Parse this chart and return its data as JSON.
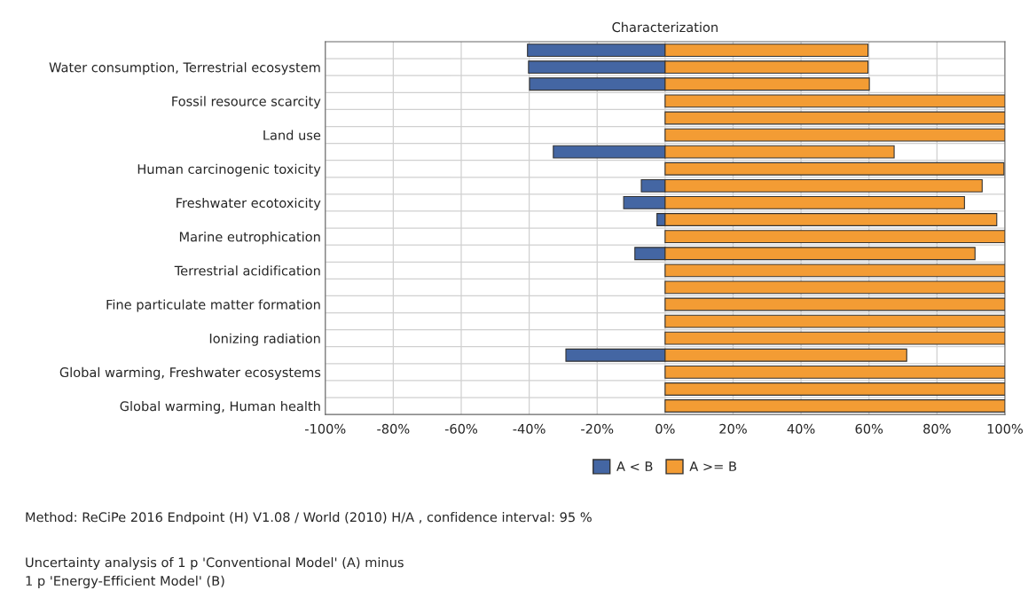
{
  "chart_data": {
    "type": "bar",
    "orientation": "horizontal",
    "stacked": true,
    "title": "Characterization",
    "categories": [
      null,
      "Water consumption, Terrestrial ecosystem",
      null,
      "Fossil resource scarcity",
      null,
      "Land use",
      null,
      "Human carcinogenic toxicity",
      null,
      "Freshwater ecotoxicity",
      null,
      "Marine eutrophication",
      null,
      "Terrestrial acidification",
      null,
      "Fine particulate matter formation",
      null,
      "Ionizing radiation",
      null,
      "Global warming, Freshwater ecosystems",
      null,
      "Global warming, Human health"
    ],
    "series": [
      {
        "name": "A < B",
        "color": "#4466a3",
        "values": [
          -40.5,
          -40.2,
          -39.9,
          null,
          null,
          null,
          -32.9,
          null,
          -7,
          -12.2,
          -2.4,
          null,
          -8.9,
          null,
          null,
          null,
          null,
          null,
          -29.2,
          null,
          null,
          null
        ]
      },
      {
        "name": "A >= B",
        "color": "#f39c34",
        "values": [
          59.7,
          59.7,
          60.1,
          100,
          100,
          100,
          67.4,
          99.7,
          93.3,
          88.1,
          97.6,
          100,
          91.2,
          100,
          100,
          100,
          100,
          100,
          71.1,
          100,
          100,
          100
        ]
      }
    ],
    "xlim": [
      -100,
      100
    ],
    "xticks": [
      {
        "value": -100,
        "label": "-100%"
      },
      {
        "value": -80,
        "label": "-80%"
      },
      {
        "value": -60,
        "label": "-60%"
      },
      {
        "value": -40,
        "label": "-40%"
      },
      {
        "value": -20,
        "label": "-20%"
      },
      {
        "value": 0,
        "label": "0%"
      },
      {
        "value": 20,
        "label": "20%"
      },
      {
        "value": 40,
        "label": "40%"
      },
      {
        "value": 60,
        "label": "60%"
      },
      {
        "value": 80,
        "label": "80%"
      },
      {
        "value": 100,
        "label": "100%"
      }
    ],
    "grid": true,
    "legend": "bottom",
    "annotations": [
      "Method: ReCiPe 2016 Endpoint (H) V1.08 / World (2010) H/A , confidence interval: 95 %",
      "Uncertainty analysis of 1 p 'Conventional Model' (A) minus\n1 p 'Energy-Efficient Model' (B)"
    ]
  }
}
